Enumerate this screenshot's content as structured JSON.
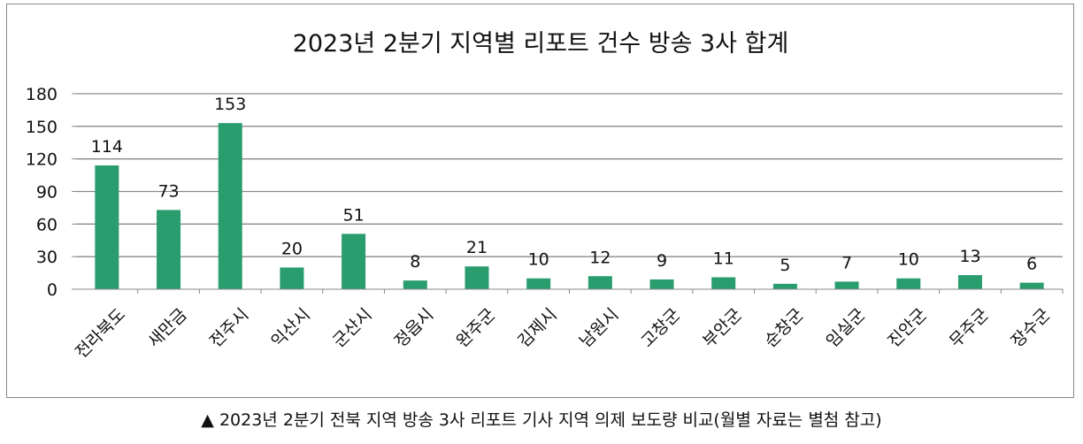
{
  "chart_data": {
    "type": "bar",
    "title": "2023년 2분기 지역별 리포트 건수 방송 3사 합계",
    "categories": [
      "전라북도",
      "새만금",
      "전주시",
      "익산시",
      "군산시",
      "정읍시",
      "완주군",
      "김제시",
      "남원시",
      "고창군",
      "부안군",
      "순창군",
      "임실군",
      "진안군",
      "무주군",
      "장수군"
    ],
    "values": [
      114,
      73,
      153,
      20,
      51,
      8,
      21,
      10,
      12,
      9,
      11,
      5,
      7,
      10,
      13,
      6
    ],
    "ylim": [
      0,
      180
    ],
    "yticks": [
      0,
      30,
      60,
      90,
      120,
      150,
      180
    ],
    "grid": true,
    "bar_color": "#2a9d6f",
    "xlabel": "",
    "ylabel": ""
  },
  "caption": "▲ 2023년 2분기 전북 지역 방송 3사 리포트 기사 지역 의제 보도량 비교(월별 자료는 별첨 참고)"
}
